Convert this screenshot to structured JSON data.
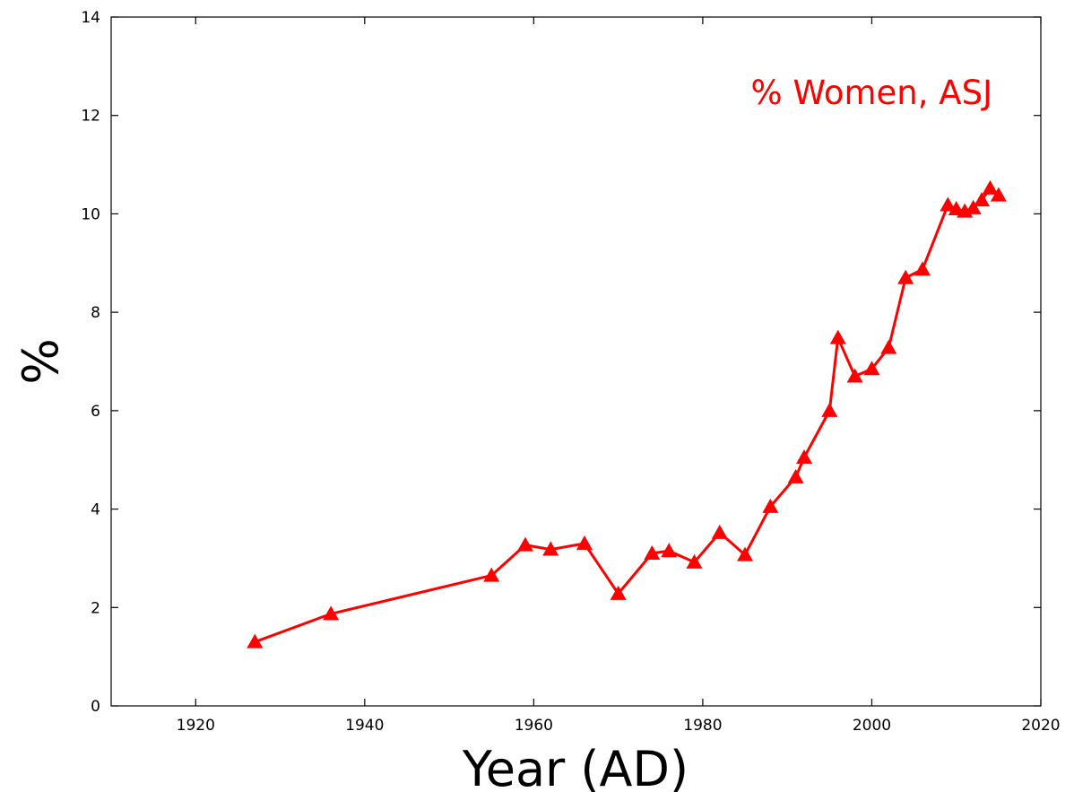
{
  "chart_data": {
    "type": "line",
    "title": "",
    "xlabel": "Year (AD)",
    "ylabel": "%",
    "xlim": [
      1910,
      2020
    ],
    "ylim": [
      0,
      14
    ],
    "xticks": [
      1920,
      1940,
      1960,
      1980,
      2000,
      2020
    ],
    "yticks": [
      0,
      2,
      4,
      6,
      8,
      10,
      12,
      14
    ],
    "grid": false,
    "series": [
      {
        "name": "% Women, ASJ",
        "color": "#ff0000",
        "marker": "triangle",
        "x": [
          1927,
          1936,
          1955,
          1959,
          1962,
          1966,
          1970,
          1974,
          1976,
          1979,
          1982,
          1985,
          1988,
          1991,
          1992,
          1995,
          1996,
          1998,
          2000,
          2002,
          2004,
          2006,
          2009,
          2010,
          2011,
          2012,
          2013,
          2014,
          2015
        ],
        "values": [
          1.3,
          1.87,
          2.65,
          3.27,
          3.18,
          3.3,
          2.28,
          3.1,
          3.15,
          2.92,
          3.52,
          3.07,
          4.05,
          4.65,
          5.05,
          6.0,
          7.48,
          6.7,
          6.85,
          7.28,
          8.7,
          8.87,
          10.18,
          10.1,
          10.05,
          10.12,
          10.28,
          10.52,
          10.38
        ]
      }
    ]
  }
}
